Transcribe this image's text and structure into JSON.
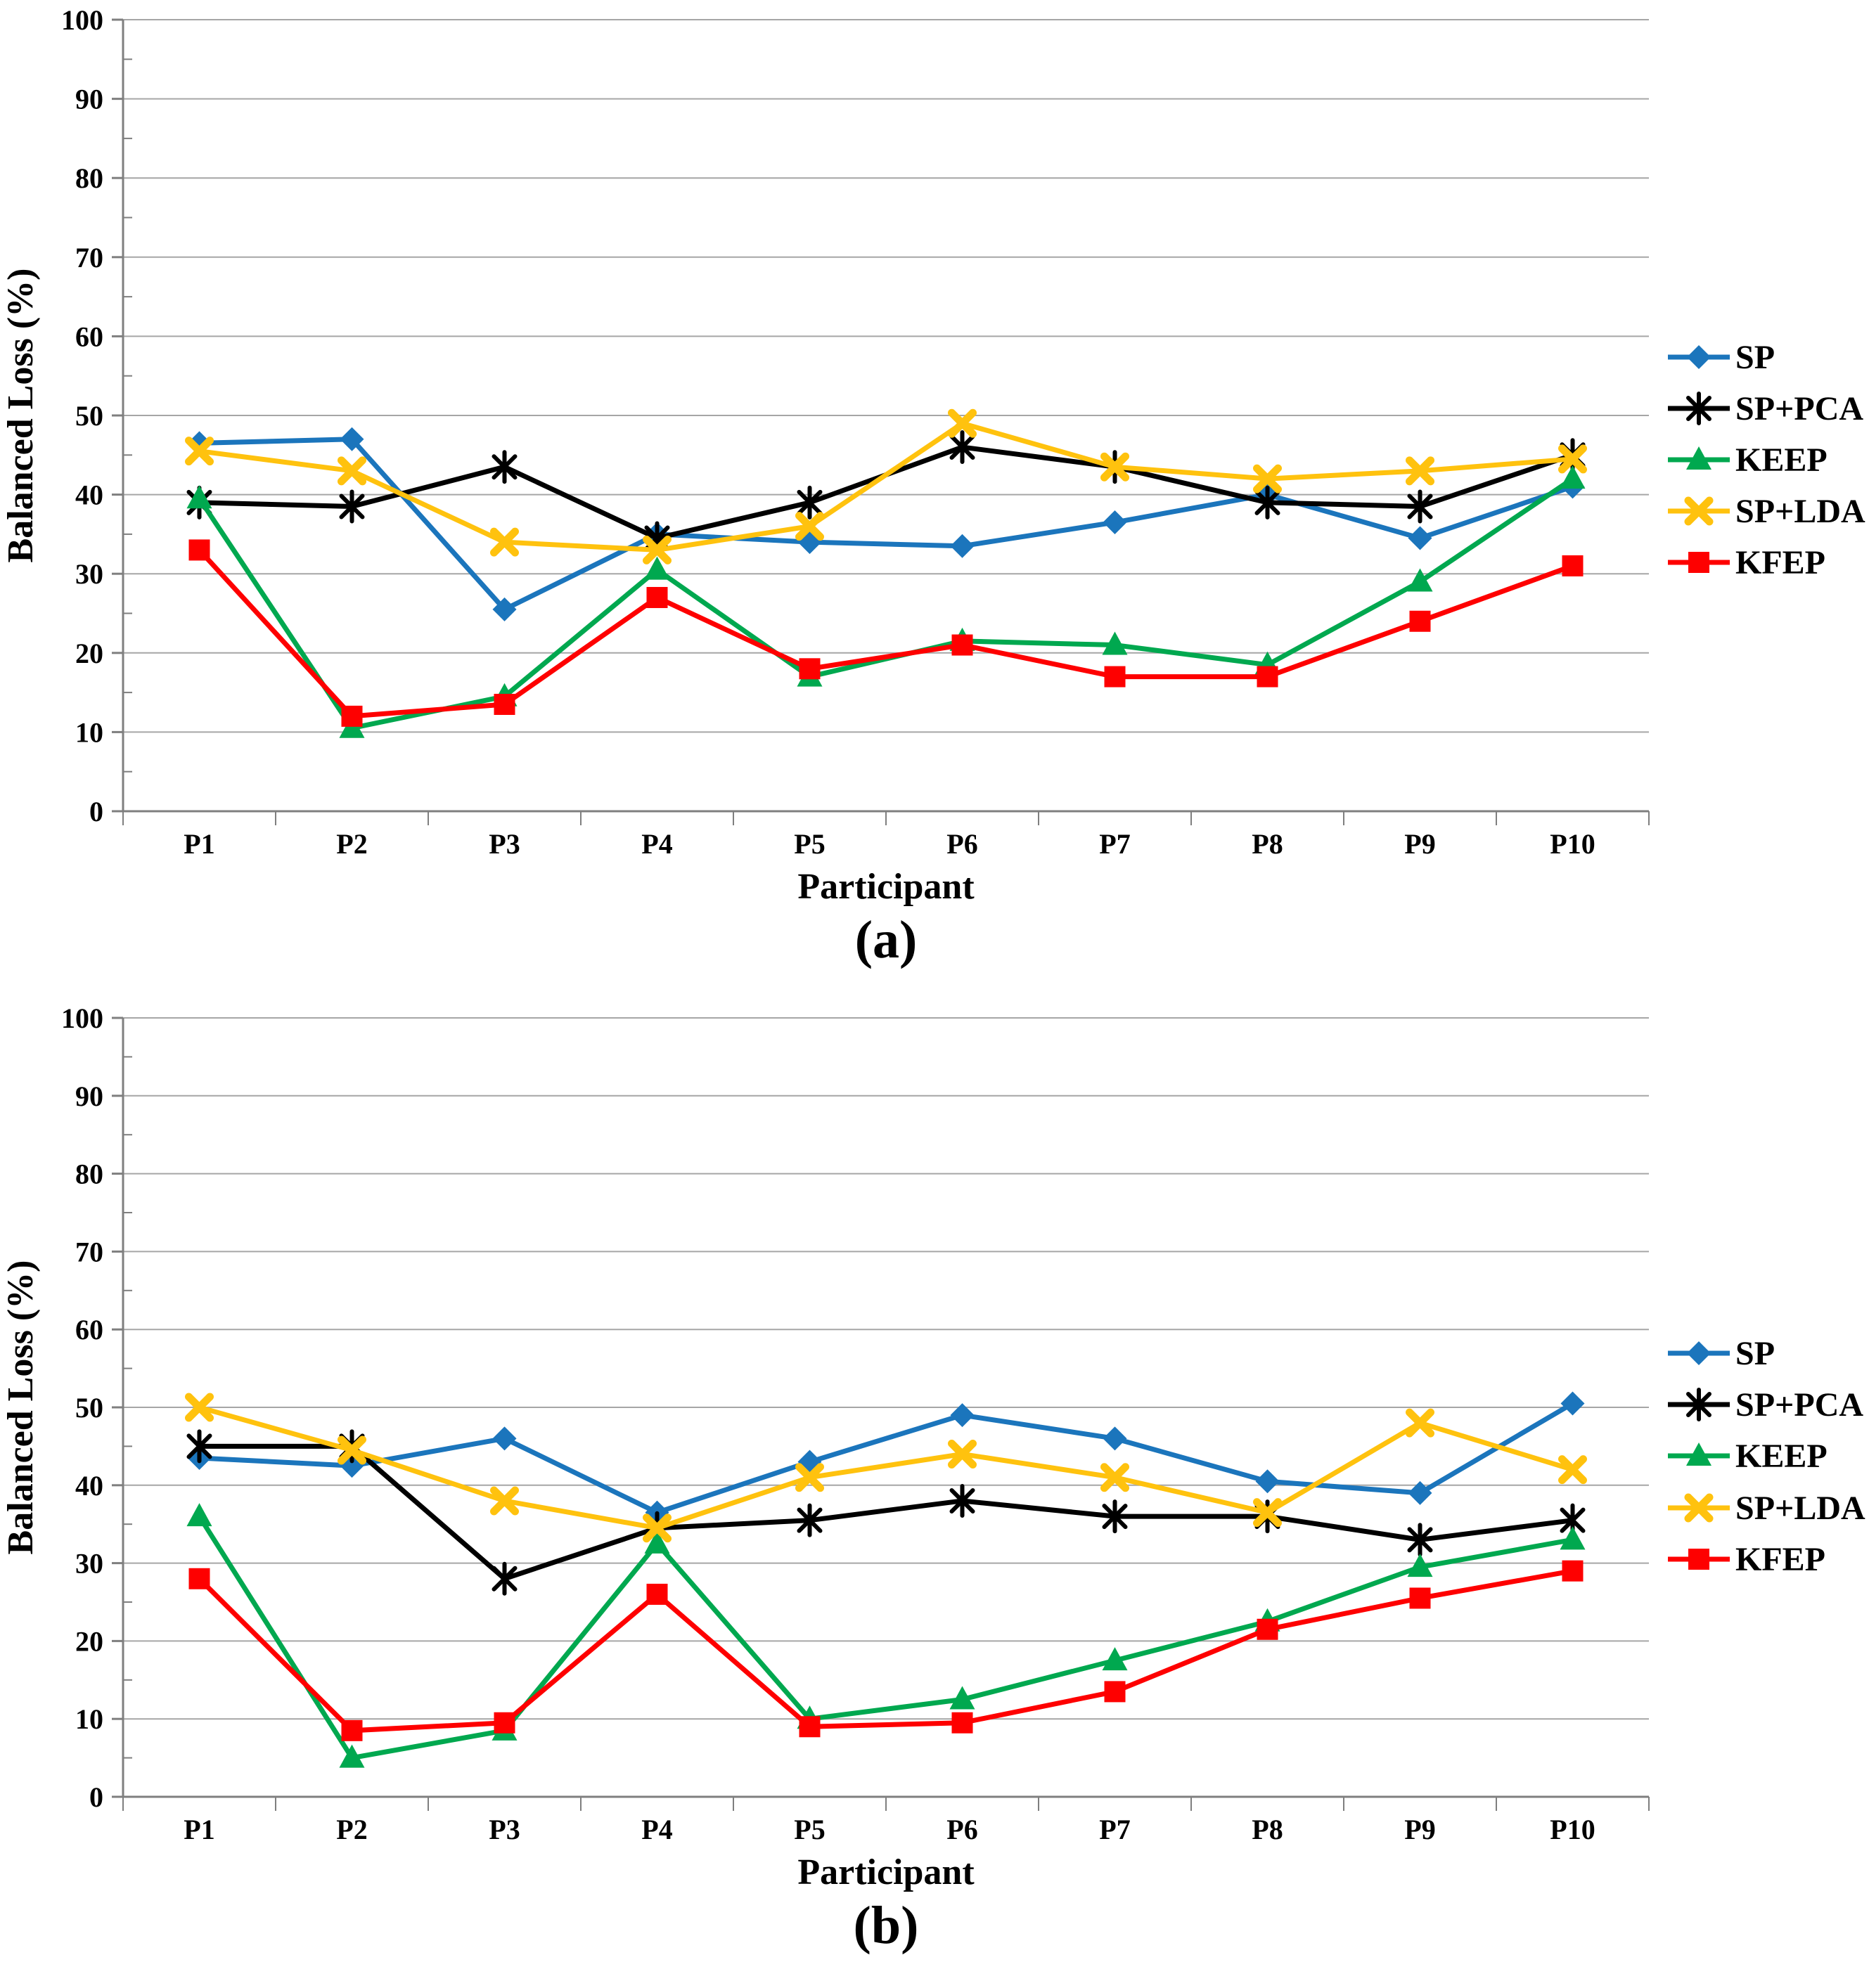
{
  "figure": {
    "background": "#ffffff",
    "axis_color": "#7f7f7f",
    "grid_color": "#a6a6a6",
    "text_color": "#000000"
  },
  "legend": {
    "position": "right",
    "items": [
      "SP",
      "SP+PCA",
      "KEEP",
      "SP+LDA",
      "KFEP"
    ]
  },
  "chart_data": [
    {
      "id": "a",
      "type": "line",
      "caption": "(a)",
      "xlabel": "Participant",
      "ylabel": "Balanced Loss (%)",
      "categories": [
        "P1",
        "P2",
        "P3",
        "P4",
        "P5",
        "P6",
        "P7",
        "P8",
        "P9",
        "P10"
      ],
      "ylim": [
        0,
        100
      ],
      "ytick_step": 10,
      "grid": true,
      "legend_position": "right",
      "series": [
        {
          "name": "SP",
          "color": "#1b75bc",
          "marker": "diamond",
          "values": [
            46.5,
            47,
            25.5,
            35,
            34,
            33.5,
            36.5,
            40,
            34.5,
            41
          ]
        },
        {
          "name": "SP+PCA",
          "color": "#000000",
          "marker": "asterisk",
          "values": [
            39,
            38.5,
            43.5,
            34.5,
            39,
            46,
            43.5,
            39,
            38.5,
            45
          ]
        },
        {
          "name": "KEEP",
          "color": "#00a84f",
          "marker": "triangle",
          "values": [
            39.5,
            10.5,
            14.5,
            30.5,
            17,
            21.5,
            21,
            18.5,
            29,
            42
          ]
        },
        {
          "name": "SP+LDA",
          "color": "#ffc20e",
          "marker": "x",
          "values": [
            45.5,
            43,
            34,
            33,
            36,
            49,
            43.5,
            42,
            43,
            44.5
          ]
        },
        {
          "name": "KFEP",
          "color": "#fe0000",
          "marker": "square",
          "values": [
            33,
            12,
            13.5,
            27,
            18,
            21,
            17,
            17,
            24,
            31
          ]
        }
      ]
    },
    {
      "id": "b",
      "type": "line",
      "caption": "(b)",
      "xlabel": "Participant",
      "ylabel": "Balanced Loss (%)",
      "categories": [
        "P1",
        "P2",
        "P3",
        "P4",
        "P5",
        "P6",
        "P7",
        "P8",
        "P9",
        "P10"
      ],
      "ylim": [
        0,
        100
      ],
      "ytick_step": 10,
      "grid": true,
      "legend_position": "right",
      "series": [
        {
          "name": "SP",
          "color": "#1b75bc",
          "marker": "diamond",
          "values": [
            43.5,
            42.5,
            46,
            36.5,
            43,
            49,
            46,
            40.5,
            39,
            50.5
          ]
        },
        {
          "name": "SP+PCA",
          "color": "#000000",
          "marker": "asterisk",
          "values": [
            45,
            45,
            28,
            34.5,
            35.5,
            38,
            36,
            36,
            33,
            35.5
          ]
        },
        {
          "name": "KEEP",
          "color": "#00a84f",
          "marker": "triangle",
          "values": [
            36,
            5,
            8.5,
            32.5,
            10,
            12.5,
            17.5,
            22.5,
            29.5,
            33
          ]
        },
        {
          "name": "SP+LDA",
          "color": "#ffc20e",
          "marker": "x",
          "values": [
            50,
            44.5,
            38,
            34.5,
            41,
            44,
            41,
            36.5,
            48,
            42
          ]
        },
        {
          "name": "KFEP",
          "color": "#fe0000",
          "marker": "square",
          "values": [
            28,
            8.5,
            9.5,
            26,
            9,
            9.5,
            13.5,
            21.5,
            25.5,
            29
          ]
        }
      ]
    }
  ]
}
